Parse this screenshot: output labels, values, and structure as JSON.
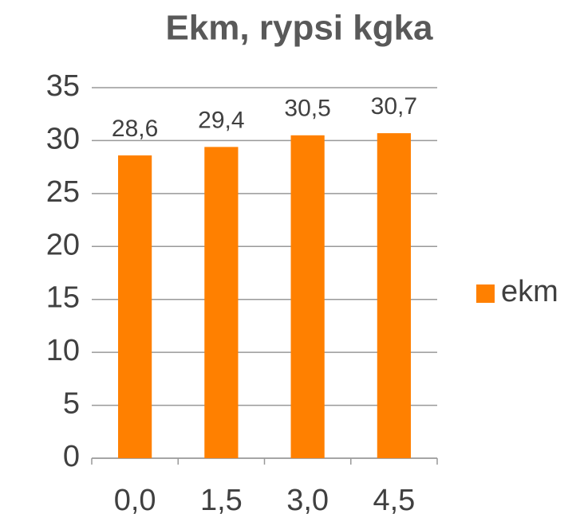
{
  "chart_data": {
    "type": "bar",
    "title": "Ekm, rypsi kgka",
    "categories": [
      "0,0",
      "1,5",
      "3,0",
      "4,5"
    ],
    "series": [
      {
        "name": "ekm",
        "color": "#ff8000",
        "values": [
          28.6,
          29.4,
          30.5,
          30.7
        ],
        "value_labels": [
          "28,6",
          "29,4",
          "30,5",
          "30,7"
        ]
      }
    ],
    "ylim": [
      0,
      35
    ],
    "yticks": [
      0,
      5,
      10,
      15,
      20,
      25,
      30,
      35
    ],
    "grid": true,
    "legend": "right"
  }
}
